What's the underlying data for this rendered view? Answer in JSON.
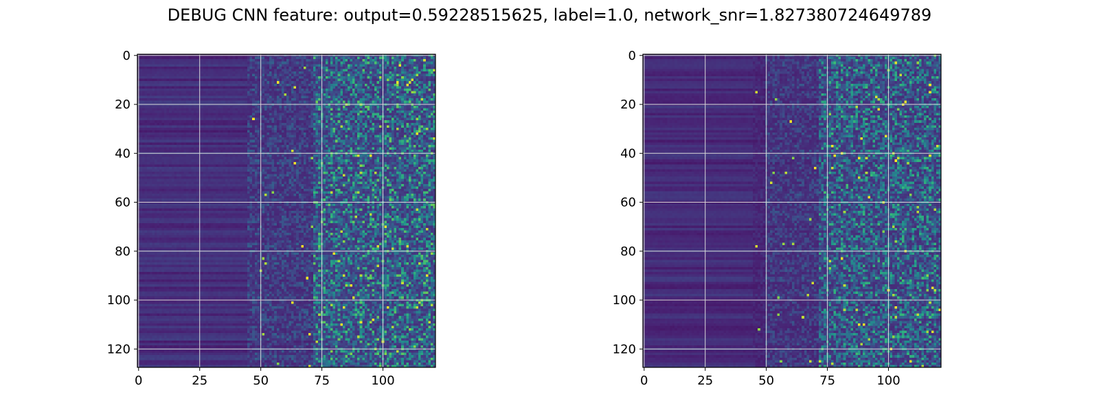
{
  "figure": {
    "suptitle": "DEBUG CNN feature: output=0.59228515625, label=1.0, network_snr=1.827380724649789"
  },
  "colors": {
    "colormap": "viridis",
    "grid": "#d9d9d9",
    "axes": "#000000"
  },
  "chart_data": [
    {
      "type": "heatmap",
      "title": "",
      "xlabel": "",
      "ylabel": "",
      "n_cols": 122,
      "n_rows": 128,
      "xlim": [
        -0.5,
        121.5
      ],
      "ylim": [
        127.5,
        -0.5
      ],
      "y_inverted": true,
      "grid": true,
      "colormap": "viridis",
      "xticks": [
        0,
        25,
        50,
        75,
        100
      ],
      "yticks": [
        0,
        20,
        40,
        60,
        80,
        100,
        120
      ],
      "xtick_labels": [
        "0",
        "25",
        "50",
        "75",
        "100"
      ],
      "ytick_labels": [
        "0",
        "20",
        "40",
        "60",
        "80",
        "100",
        "120"
      ],
      "column_intensity_profile": [
        {
          "col_start": 0,
          "col_end": 45,
          "mean": 0.16,
          "variation": 0.05
        },
        {
          "col_start": 45,
          "col_end": 72,
          "mean": 0.2,
          "variation": 0.12
        },
        {
          "col_start": 72,
          "col_end": 121,
          "mean": 0.26,
          "variation": 0.3
        }
      ]
    },
    {
      "type": "heatmap",
      "title": "",
      "xlabel": "",
      "ylabel": "",
      "n_cols": 122,
      "n_rows": 128,
      "xlim": [
        -0.5,
        121.5
      ],
      "ylim": [
        127.5,
        -0.5
      ],
      "y_inverted": true,
      "grid": true,
      "colormap": "viridis",
      "xticks": [
        0,
        25,
        50,
        75,
        100
      ],
      "yticks": [
        0,
        20,
        40,
        60,
        80,
        100,
        120
      ],
      "xtick_labels": [
        "0",
        "25",
        "50",
        "75",
        "100"
      ],
      "ytick_labels": [
        "0",
        "20",
        "40",
        "60",
        "80",
        "100",
        "120"
      ],
      "column_intensity_profile": [
        {
          "col_start": 0,
          "col_end": 50,
          "mean": 0.15,
          "variation": 0.04
        },
        {
          "col_start": 50,
          "col_end": 72,
          "mean": 0.19,
          "variation": 0.1
        },
        {
          "col_start": 72,
          "col_end": 121,
          "mean": 0.24,
          "variation": 0.28
        }
      ]
    }
  ]
}
